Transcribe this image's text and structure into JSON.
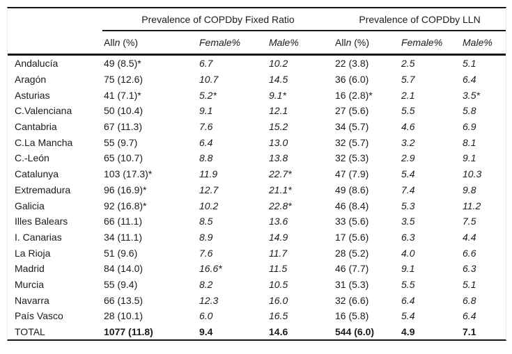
{
  "table": {
    "group_headers": [
      "Prevalence of COPDby Fixed Ratio",
      "Prevalence of COPDby LLN"
    ],
    "sub_headers": {
      "all_prefix": "All",
      "all_n": "n",
      "all_suffix": " (%)",
      "female": "Female%",
      "male": "Male%"
    },
    "rows": [
      {
        "region": "Andalucía",
        "fr_all": "49 (8.5)*",
        "fr_female": "6.7",
        "fr_male": "10.2",
        "lln_all": "22 (3.8)",
        "lln_female": "2.5",
        "lln_male": "5.1"
      },
      {
        "region": "Aragón",
        "fr_all": "75 (12.6)",
        "fr_female": "10.7",
        "fr_male": "14.5",
        "lln_all": "36 (6.0)",
        "lln_female": "5.7",
        "lln_male": "6.4"
      },
      {
        "region": "Asturias",
        "fr_all": "41 (7.1)*",
        "fr_female": "5.2*",
        "fr_male": "9.1*",
        "lln_all": "16 (2.8)*",
        "lln_female": "2.1",
        "lln_male": "3.5*"
      },
      {
        "region": "C.Valenciana",
        "fr_all": "50 (10.4)",
        "fr_female": "9.1",
        "fr_male": "12.1",
        "lln_all": "27 (5.6)",
        "lln_female": "5.5",
        "lln_male": "5.8"
      },
      {
        "region": "Cantabria",
        "fr_all": "67 (11.3)",
        "fr_female": "7.6",
        "fr_male": "15.2",
        "lln_all": "34 (5.7)",
        "lln_female": "4.6",
        "lln_male": "6.9"
      },
      {
        "region": "C.La Mancha",
        "fr_all": "55 (9.7)",
        "fr_female": "6.4",
        "fr_male": "13.0",
        "lln_all": "32 (5.7)",
        "lln_female": "3.2",
        "lln_male": "8.1"
      },
      {
        "region": "C.-León",
        "fr_all": "65 (10.7)",
        "fr_female": "8.8",
        "fr_male": "13.8",
        "lln_all": "32 (5.3)",
        "lln_female": "2.9",
        "lln_male": "9.1"
      },
      {
        "region": "Catalunya",
        "fr_all": "103 (17.3)*",
        "fr_female": "11.9",
        "fr_male": "22.7*",
        "lln_all": "47 (7.9)",
        "lln_female": "5.4",
        "lln_male": "10.3"
      },
      {
        "region": "Extremadura",
        "fr_all": "96 (16.9)*",
        "fr_female": "12.7",
        "fr_male": "21.1*",
        "lln_all": "49 (8.6)",
        "lln_female": "7.4",
        "lln_male": "9.8"
      },
      {
        "region": "Galicia",
        "fr_all": "92 (16.8)*",
        "fr_female": "10.2",
        "fr_male": "22.8*",
        "lln_all": "46 (8.4)",
        "lln_female": "5.3",
        "lln_male": "11.2"
      },
      {
        "region": "Illes Balears",
        "fr_all": "66 (11.1)",
        "fr_female": "8.5",
        "fr_male": "13.6",
        "lln_all": "33 (5.6)",
        "lln_female": "3.5",
        "lln_male": "7.5"
      },
      {
        "region": "I. Canarias",
        "fr_all": "34 (11.1)",
        "fr_female": "8.9",
        "fr_male": "14.9",
        "lln_all": "17 (5.6)",
        "lln_female": "6.3",
        "lln_male": "4.4"
      },
      {
        "region": "La Rioja",
        "fr_all": "51 (9.6)",
        "fr_female": "7.6",
        "fr_male": "11.7",
        "lln_all": "28 (5.2)",
        "lln_female": "4.0",
        "lln_male": "6.6"
      },
      {
        "region": "Madrid",
        "fr_all": "84 (14.0)",
        "fr_female": "16.6*",
        "fr_male": "11.5",
        "lln_all": "46 (7.7)",
        "lln_female": "9.1",
        "lln_male": "6.3"
      },
      {
        "region": "Murcia",
        "fr_all": "55 (9.4)",
        "fr_female": "8.2",
        "fr_male": "10.5",
        "lln_all": "31 (5.3)",
        "lln_female": "5.5",
        "lln_male": "5.1"
      },
      {
        "region": "Navarra",
        "fr_all": "66 (13.5)",
        "fr_female": "12.3",
        "fr_male": "16.0",
        "lln_all": "32 (6.6)",
        "lln_female": "6.4",
        "lln_male": "6.8"
      },
      {
        "region": "País Vasco",
        "fr_all": "28 (10.1)",
        "fr_female": "6.0",
        "fr_male": "16.5",
        "lln_all": "16 (5.8)",
        "lln_female": "5.4",
        "lln_male": "6.4"
      },
      {
        "region": "TOTAL",
        "fr_all": "1077 (11.8)",
        "fr_female": "9.4",
        "fr_male": "14.6",
        "lln_all": "544 (6.0)",
        "lln_female": "4.9",
        "lln_male": "7.1",
        "is_total": true
      }
    ]
  }
}
